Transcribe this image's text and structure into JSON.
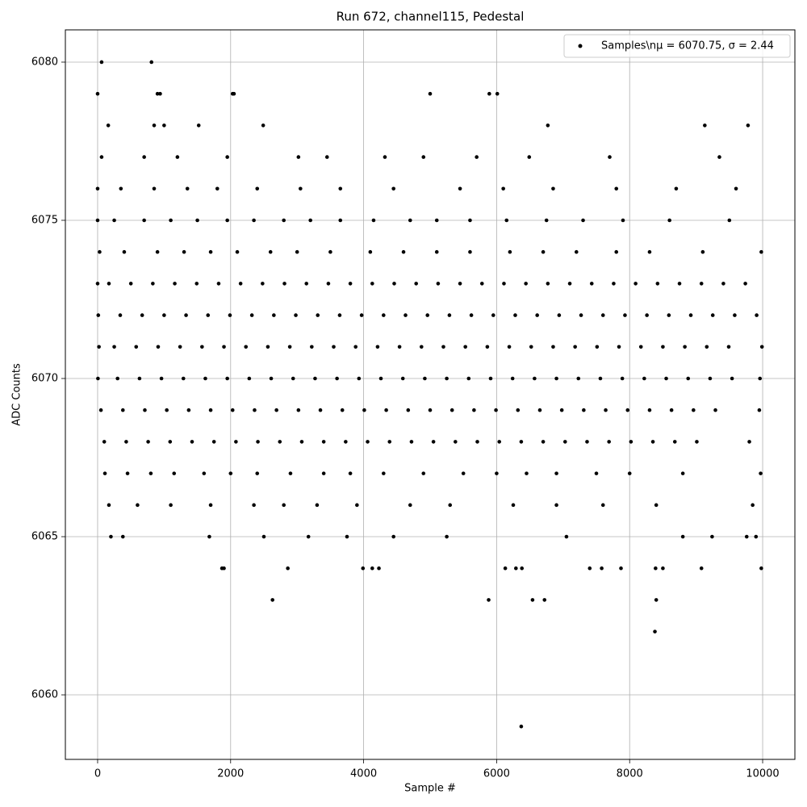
{
  "chart_data": {
    "type": "scatter",
    "title": "Run 672, channel115, Pedestal",
    "x_label": "Sample #",
    "y_label": "ADC Counts",
    "xlim": [
      -485,
      10485
    ],
    "ylim": [
      6057.96,
      6081.02
    ],
    "xticks": [
      0,
      2000,
      4000,
      6000,
      8000,
      10000
    ],
    "yticks": [
      6060,
      6065,
      6070,
      6075,
      6080
    ],
    "grid": true,
    "legend": "upper right",
    "x": [
      10,
      340,
      670,
      1000,
      1330,
      1660,
      1990,
      2320,
      2650,
      2980,
      3310,
      3640,
      3970,
      4300,
      4630,
      4960,
      5290,
      5620,
      5950,
      6280,
      6610,
      6940,
      7270,
      7600,
      7930,
      8260,
      8590,
      8920,
      9250,
      9580,
      9910,
      0,
      170,
      500,
      830,
      1160,
      1490,
      1820,
      2150,
      2480,
      2810,
      3140,
      3470,
      3800,
      4130,
      4460,
      4790,
      5120,
      5450,
      5780,
      6110,
      6440,
      6770,
      7100,
      7430,
      7760,
      8090,
      8420,
      8750,
      9080,
      9410,
      9740,
      20,
      250,
      580,
      910,
      1240,
      1570,
      1900,
      2230,
      2560,
      2890,
      3220,
      3550,
      3880,
      4210,
      4540,
      4870,
      5200,
      5530,
      5860,
      6190,
      6520,
      6850,
      7180,
      7510,
      7840,
      8170,
      8500,
      8830,
      9160,
      9490,
      9990,
      5,
      300,
      630,
      960,
      1290,
      1620,
      1950,
      2280,
      2610,
      2940,
      3270,
      3600,
      3930,
      4260,
      4590,
      4920,
      5250,
      5580,
      5910,
      6240,
      6570,
      6900,
      7230,
      7560,
      7890,
      8220,
      8550,
      8880,
      9210,
      9540,
      9960,
      50,
      380,
      710,
      1040,
      1370,
      1700,
      2030,
      2360,
      2690,
      3020,
      3350,
      3680,
      4010,
      4340,
      4670,
      5000,
      5330,
      5660,
      5990,
      6320,
      6650,
      6980,
      7310,
      7640,
      7970,
      8300,
      8630,
      8960,
      9290,
      9950,
      100,
      430,
      760,
      1090,
      1420,
      1750,
      2080,
      2410,
      2740,
      3070,
      3400,
      3730,
      4060,
      4390,
      4720,
      5050,
      5380,
      5710,
      6040,
      6370,
      6700,
      7030,
      7360,
      7690,
      8020,
      8350,
      8680,
      9010,
      9800,
      30,
      400,
      900,
      1300,
      1700,
      2100,
      2600,
      3000,
      3500,
      4100,
      4600,
      5100,
      5600,
      6200,
      6700,
      7200,
      7800,
      8300,
      9100,
      9980,
      110,
      450,
      800,
      1150,
      1600,
      2000,
      2400,
      2900,
      3400,
      3800,
      4300,
      4900,
      5500,
      6000,
      6450,
      6900,
      7500,
      8000,
      8800,
      9970,
      0,
      250,
      700,
      1100,
      1500,
      1950,
      2350,
      2800,
      3200,
      3650,
      4150,
      4700,
      5100,
      5600,
      6150,
      6750,
      7300,
      7900,
      8600,
      9500,
      0,
      350,
      850,
      1350,
      1800,
      2400,
      3050,
      3650,
      4450,
      5450,
      6100,
      6850,
      7800,
      8700,
      9600,
      170,
      600,
      1100,
      1700,
      2350,
      2800,
      3300,
      3900,
      4700,
      5300,
      6250,
      6900,
      7600,
      8400,
      9850,
      60,
      700,
      1200,
      1950,
      3020,
      3450,
      4320,
      4900,
      5700,
      6490,
      7700,
      9350,
      0,
      60,
      810,
      160,
      850,
      900,
      940,
      1000,
      1520,
      2030,
      2050,
      2490,
      5000,
      5890,
      6010,
      6770,
      9130,
      9780,
      200,
      380,
      1680,
      1870,
      1900,
      2500,
      2630,
      2860,
      3170,
      3750,
      3990,
      4130,
      4230,
      4450,
      5250,
      5880,
      6130,
      6290,
      6380,
      6370,
      6540,
      6720,
      7050,
      7400,
      7580,
      7870,
      8380,
      8400,
      8390,
      8500,
      8800,
      9080,
      9240,
      9980,
      9900,
      9760
    ],
    "series": [
      {
        "name": "Samples\\nμ = 6070.75, σ = 2.44",
        "color": "#000000",
        "values": [
          6072,
          6072,
          6072,
          6072,
          6072,
          6072,
          6072,
          6072,
          6072,
          6072,
          6072,
          6072,
          6072,
          6072,
          6072,
          6072,
          6072,
          6072,
          6072,
          6072,
          6072,
          6072,
          6072,
          6072,
          6072,
          6072,
          6072,
          6072,
          6072,
          6072,
          6072,
          6073,
          6073,
          6073,
          6073,
          6073,
          6073,
          6073,
          6073,
          6073,
          6073,
          6073,
          6073,
          6073,
          6073,
          6073,
          6073,
          6073,
          6073,
          6073,
          6073,
          6073,
          6073,
          6073,
          6073,
          6073,
          6073,
          6073,
          6073,
          6073,
          6073,
          6073,
          6071,
          6071,
          6071,
          6071,
          6071,
          6071,
          6071,
          6071,
          6071,
          6071,
          6071,
          6071,
          6071,
          6071,
          6071,
          6071,
          6071,
          6071,
          6071,
          6071,
          6071,
          6071,
          6071,
          6071,
          6071,
          6071,
          6071,
          6071,
          6071,
          6071,
          6071,
          6070,
          6070,
          6070,
          6070,
          6070,
          6070,
          6070,
          6070,
          6070,
          6070,
          6070,
          6070,
          6070,
          6070,
          6070,
          6070,
          6070,
          6070,
          6070,
          6070,
          6070,
          6070,
          6070,
          6070,
          6070,
          6070,
          6070,
          6070,
          6070,
          6070,
          6070,
          6069,
          6069,
          6069,
          6069,
          6069,
          6069,
          6069,
          6069,
          6069,
          6069,
          6069,
          6069,
          6069,
          6069,
          6069,
          6069,
          6069,
          6069,
          6069,
          6069,
          6069,
          6069,
          6069,
          6069,
          6069,
          6069,
          6069,
          6069,
          6069,
          6069,
          6068,
          6068,
          6068,
          6068,
          6068,
          6068,
          6068,
          6068,
          6068,
          6068,
          6068,
          6068,
          6068,
          6068,
          6068,
          6068,
          6068,
          6068,
          6068,
          6068,
          6068,
          6068,
          6068,
          6068,
          6068,
          6068,
          6068,
          6068,
          6068,
          6074,
          6074,
          6074,
          6074,
          6074,
          6074,
          6074,
          6074,
          6074,
          6074,
          6074,
          6074,
          6074,
          6074,
          6074,
          6074,
          6074,
          6074,
          6074,
          6074,
          6067,
          6067,
          6067,
          6067,
          6067,
          6067,
          6067,
          6067,
          6067,
          6067,
          6067,
          6067,
          6067,
          6067,
          6067,
          6067,
          6067,
          6067,
          6067,
          6067,
          6075,
          6075,
          6075,
          6075,
          6075,
          6075,
          6075,
          6075,
          6075,
          6075,
          6075,
          6075,
          6075,
          6075,
          6075,
          6075,
          6075,
          6075,
          6075,
          6075,
          6076,
          6076,
          6076,
          6076,
          6076,
          6076,
          6076,
          6076,
          6076,
          6076,
          6076,
          6076,
          6076,
          6076,
          6076,
          6066,
          6066,
          6066,
          6066,
          6066,
          6066,
          6066,
          6066,
          6066,
          6066,
          6066,
          6066,
          6066,
          6066,
          6066,
          6077,
          6077,
          6077,
          6077,
          6077,
          6077,
          6077,
          6077,
          6077,
          6077,
          6077,
          6077,
          6079,
          6080,
          6080,
          6078,
          6078,
          6079,
          6079,
          6078,
          6078,
          6079,
          6079,
          6078,
          6079,
          6079,
          6079,
          6078,
          6078,
          6078,
          6065,
          6065,
          6065,
          6064,
          6064,
          6065,
          6063,
          6064,
          6065,
          6065,
          6064,
          6064,
          6064,
          6065,
          6065,
          6063,
          6064,
          6064,
          6064,
          6059,
          6063,
          6063,
          6065,
          6064,
          6064,
          6064,
          6062,
          6063,
          6064,
          6064,
          6065,
          6064,
          6065,
          6064,
          6065,
          6065
        ]
      }
    ]
  }
}
